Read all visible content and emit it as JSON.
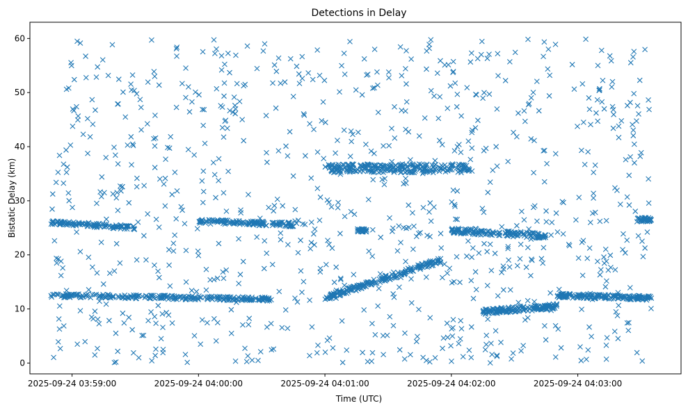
{
  "chart_data": {
    "type": "scatter",
    "title": "Detections in Delay",
    "xlabel": "Time (UTC)",
    "ylabel": "Bistatic Delay (km)",
    "x_axis_type": "time",
    "xlim": [
      "2025-09-24 03:58:40",
      "2025-09-24 04:03:49"
    ],
    "xticks": [
      "2025-09-24 03:59:00",
      "2025-09-24 04:00:00",
      "2025-09-24 04:01:00",
      "2025-09-24 04:02:00",
      "2025-09-24 04:03:00"
    ],
    "ylim": [
      -2,
      63
    ],
    "yticks": [
      0,
      10,
      20,
      30,
      40,
      50,
      60
    ],
    "marker": "x",
    "color": "#1f77b4",
    "grid": false,
    "legend": "none",
    "series": [
      {
        "points_description": "Tracks: ~26 km (03:58:50-03:59:30), ~12 km (03:58:50-04:00:35), ~26 km (04:00:00-04:00:45), ~36 km (04:01:00-04:02:10), ~24.5 km (04:01:15), rising 12->19 km (04:01:00-04:01:55), ~24 km (04:02:00-04:02:45), ~10 km (04:02:15-04:02:50), ~12 km (04:02:50-04:03:35), ~26.5 km (04:03:28-04:03:35), plus uniform clutter 0-60 km"
      }
    ]
  }
}
